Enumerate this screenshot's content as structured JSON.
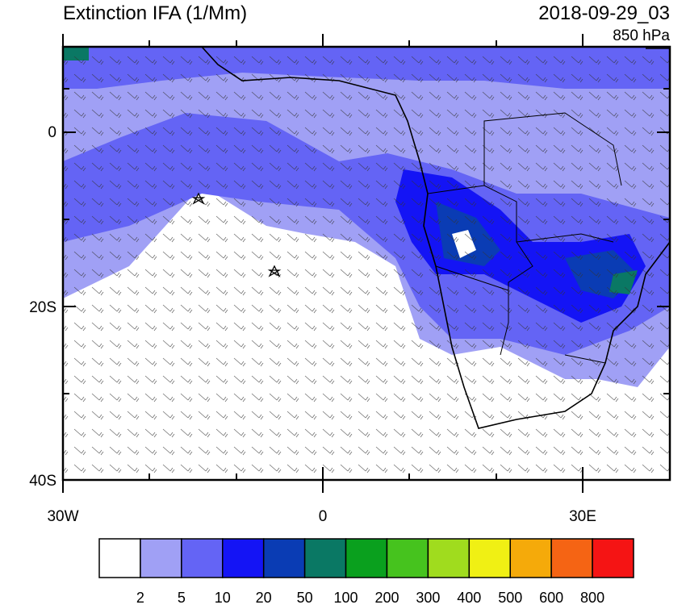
{
  "title": "Extinction IFA (1/Mm)",
  "time": "2018-09-29_03",
  "level": "850 hPa",
  "lat_labels": [
    "0",
    "20S",
    "40S"
  ],
  "lon_labels": [
    "30W",
    "0",
    "30E"
  ],
  "colorbar": {
    "colors": [
      "#ffffff",
      "#a0a0f5",
      "#6464f5",
      "#1414f5",
      "#0a3cb4",
      "#0a7864",
      "#0aa01e",
      "#46c31e",
      "#a0dc1e",
      "#f0f014",
      "#f5aa0a",
      "#f56414",
      "#f51414"
    ],
    "labels": [
      "2",
      "5",
      "10",
      "20",
      "50",
      "100",
      "200",
      "300",
      "400",
      "500",
      "600",
      "800"
    ]
  }
}
